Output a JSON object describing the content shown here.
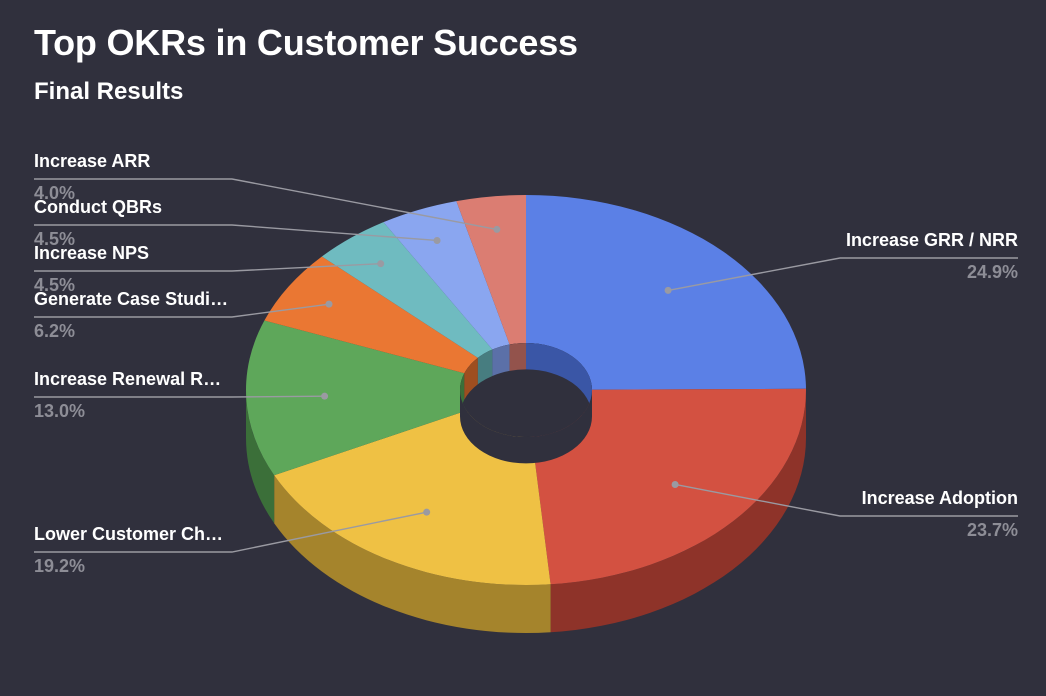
{
  "title": "Top OKRs in Customer Success",
  "subtitle": "Final Results",
  "colors": {
    "background": "#30303d",
    "leader_line": "#9a9aa2",
    "label_text": "#ffffff",
    "percent_text": "#8d8d96"
  },
  "chart_data": {
    "type": "pie",
    "style": "3d-donut",
    "title": "Top OKRs in Customer Success",
    "subtitle": "Final Results",
    "slices": [
      {
        "label": "Increase GRR / NRR",
        "value": 24.9,
        "display": "24.9%",
        "color": "#5b80e6",
        "side_color": "#3a56a6",
        "side": "right"
      },
      {
        "label": "Increase Adoption",
        "value": 23.7,
        "display": "23.7%",
        "color": "#d35141",
        "side_color": "#8e3329",
        "side": "right"
      },
      {
        "label": "Lower Customer Ch…",
        "value": 19.2,
        "display": "19.2%",
        "color": "#efc144",
        "side_color": "#a5842c",
        "side": "left"
      },
      {
        "label": "Increase Renewal R…",
        "value": 13.0,
        "display": "13.0%",
        "color": "#5ea75a",
        "side_color": "#3b6f39",
        "side": "left"
      },
      {
        "label": "Generate Case Studi…",
        "value": 6.2,
        "display": "6.2%",
        "color": "#ea7733",
        "side_color": "#9e4e20",
        "side": "left"
      },
      {
        "label": "Increase NPS",
        "value": 4.5,
        "display": "4.5%",
        "color": "#6fbbc0",
        "side_color": "#477d80",
        "side": "left"
      },
      {
        "label": "Conduct QBRs",
        "value": 4.5,
        "display": "4.5%",
        "color": "#8aa6f0",
        "side_color": "#5b70a8",
        "side": "left"
      },
      {
        "label": "Increase ARR",
        "value": 4.0,
        "display": "4.0%",
        "color": "#db7d72",
        "side_color": "#93534c",
        "side": "left"
      }
    ],
    "legend": "none"
  }
}
